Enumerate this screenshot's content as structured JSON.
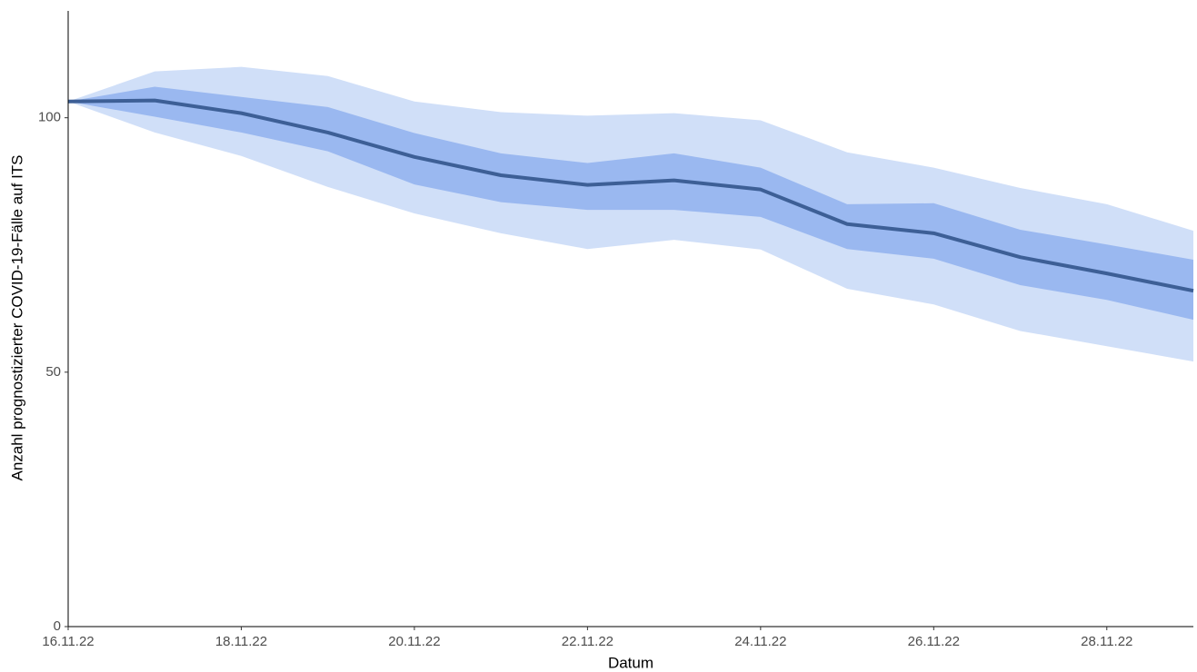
{
  "chart_data": {
    "type": "line",
    "x_label": "Datum",
    "y_label": "Anzahl prognostizierter COVID-19-Fälle auf ITS",
    "x": [
      "16.11.22",
      "17.11.22",
      "18.11.22",
      "19.11.22",
      "20.11.22",
      "21.11.22",
      "22.11.22",
      "23.11.22",
      "24.11.22",
      "25.11.22",
      "26.11.22",
      "27.11.22",
      "28.11.22",
      "29.11.22"
    ],
    "xlim": [
      "16.11.22",
      "29.11.22"
    ],
    "xticks": [
      "16.11.22",
      "18.11.22",
      "20.11.22",
      "22.11.22",
      "24.11.22",
      "26.11.22",
      "28.11.22"
    ],
    "ylim": [
      0,
      121
    ],
    "yticks": [
      0,
      50,
      100
    ],
    "grid": false,
    "bands": [
      {
        "color": "#d0dff8",
        "upper": [
          103.2,
          109.1,
          110.0,
          108.2,
          103.2,
          101.1,
          100.4,
          100.9,
          99.5,
          93.2,
          90.2,
          86.2,
          83.0,
          77.8
        ],
        "lower": [
          103.2,
          97.1,
          92.5,
          86.4,
          81.2,
          77.3,
          74.2,
          76.0,
          74.1,
          66.4,
          63.3,
          58.1,
          55.1,
          52.1
        ]
      },
      {
        "color": "#9ab8f0",
        "upper": [
          103.2,
          106.1,
          104.1,
          102.1,
          97.0,
          93.0,
          91.1,
          93.0,
          90.2,
          83.0,
          83.2,
          78.0,
          75.1,
          72.1
        ],
        "lower": [
          103.2,
          100.2,
          97.1,
          93.4,
          86.9,
          83.4,
          81.9,
          81.9,
          80.5,
          74.2,
          72.3,
          67.1,
          64.2,
          60.3
        ]
      }
    ],
    "series": [
      {
        "color": "#3d5f96",
        "values": [
          103.2,
          103.4,
          100.9,
          97.1,
          92.3,
          88.7,
          86.8,
          87.7,
          85.9,
          79.1,
          77.3,
          72.6,
          69.4,
          66.0
        ]
      }
    ]
  }
}
